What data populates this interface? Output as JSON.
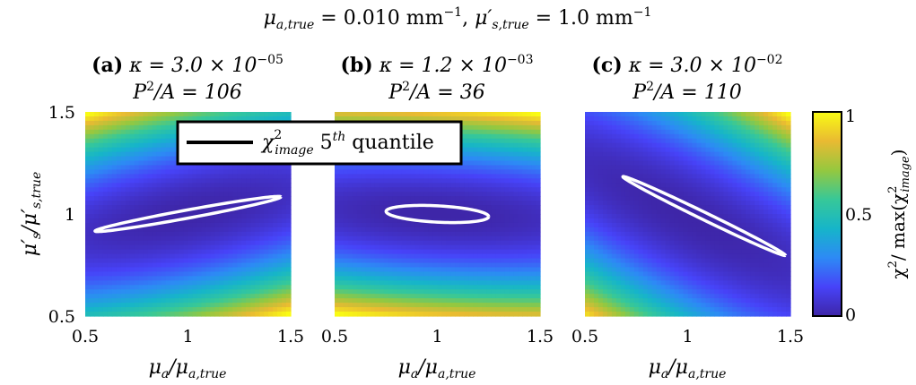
{
  "figure_title": {
    "lhs1": "μ",
    "sub1": "a,true",
    "mid": " = 0.010 mm",
    "sup1": "−1",
    "comma": ", ",
    "lhs2": "μ′",
    "sub2": "s,true",
    "rhs2": " = 1.0 mm",
    "sup2": "−1"
  },
  "panels": [
    {
      "letter": "(a)",
      "kappa_prefix": "κ = 3.0 × 10",
      "kappa_exp": "−05",
      "pa_label": "P",
      "pa_sup": "2",
      "pa_rest": "/A = 106"
    },
    {
      "letter": "(b)",
      "kappa_prefix": "κ = 1.2 × 10",
      "kappa_exp": "−03",
      "pa_label": "P",
      "pa_sup": "2",
      "pa_rest": "/A = 36"
    },
    {
      "letter": "(c)",
      "kappa_prefix": "κ = 3.0 × 10",
      "kappa_exp": "−02",
      "pa_label": "P",
      "pa_sup": "2",
      "pa_rest": "/A = 110"
    }
  ],
  "xaxis": {
    "label_main": "μ",
    "label_sub": "a",
    "label_slash": "/μ",
    "label_sub2": "a,true"
  },
  "yaxis": {
    "label_main": "μ′",
    "label_sub": "s",
    "label_slash": "/μ′",
    "label_sub2": "s,true"
  },
  "legend": {
    "chi": "χ",
    "chi_sup": "2",
    "chi_sub": "image",
    "rest": " 5",
    "rest_sup": "th",
    "rest_end": " quantile"
  },
  "colorbar": {
    "label_chi": "χ",
    "label_sup": "2",
    "label_mid": "/ max(χ",
    "label_sup2": "2",
    "label_sub2": "image",
    "label_end": ")",
    "ticks": [
      "0",
      "0.5",
      "1"
    ]
  },
  "colors": {
    "cmap": [
      "#3e26a8",
      "#4743f8",
      "#2d8af5",
      "#16b5c9",
      "#37c898",
      "#95c83f",
      "#e9ba32",
      "#f9fb14"
    ],
    "contour": "#ffffff",
    "legend_line": "#000000"
  },
  "chart_data": {
    "type": "heatmap",
    "xlim": [
      0.5,
      1.5
    ],
    "ylim": [
      0.5,
      1.5
    ],
    "xticks": [
      "0.5",
      "1",
      "1.5"
    ],
    "yticks": [
      "0.5",
      "1",
      "1.5"
    ],
    "colorbar_range": [
      0,
      1
    ],
    "panels": [
      {
        "ellipse": {
          "cx": 1.0,
          "cy": 1.0,
          "rx": 0.46,
          "ry": 0.02,
          "angle_deg": 10.5
        },
        "field": {
          "valley_intercept": 1.0,
          "valley_slope": 0.2,
          "coef_y": 2.2,
          "coef_x": 0.15
        }
      },
      {
        "ellipse": {
          "cx": 1.0,
          "cy": 1.0,
          "rx": 0.25,
          "ry": 0.04,
          "angle_deg": -3
        },
        "field": {
          "valley_intercept": 1.0,
          "valley_slope": -0.05,
          "coef_y": 2.9,
          "coef_x": 0.12
        }
      },
      {
        "ellipse": {
          "cx": 1.08,
          "cy": 0.99,
          "rx": 0.44,
          "ry": 0.018,
          "angle_deg": -26
        },
        "field": {
          "valley_intercept": 0.985,
          "valley_slope": -0.48,
          "coef_y": 2.2,
          "coef_x": 0.18
        }
      }
    ]
  }
}
